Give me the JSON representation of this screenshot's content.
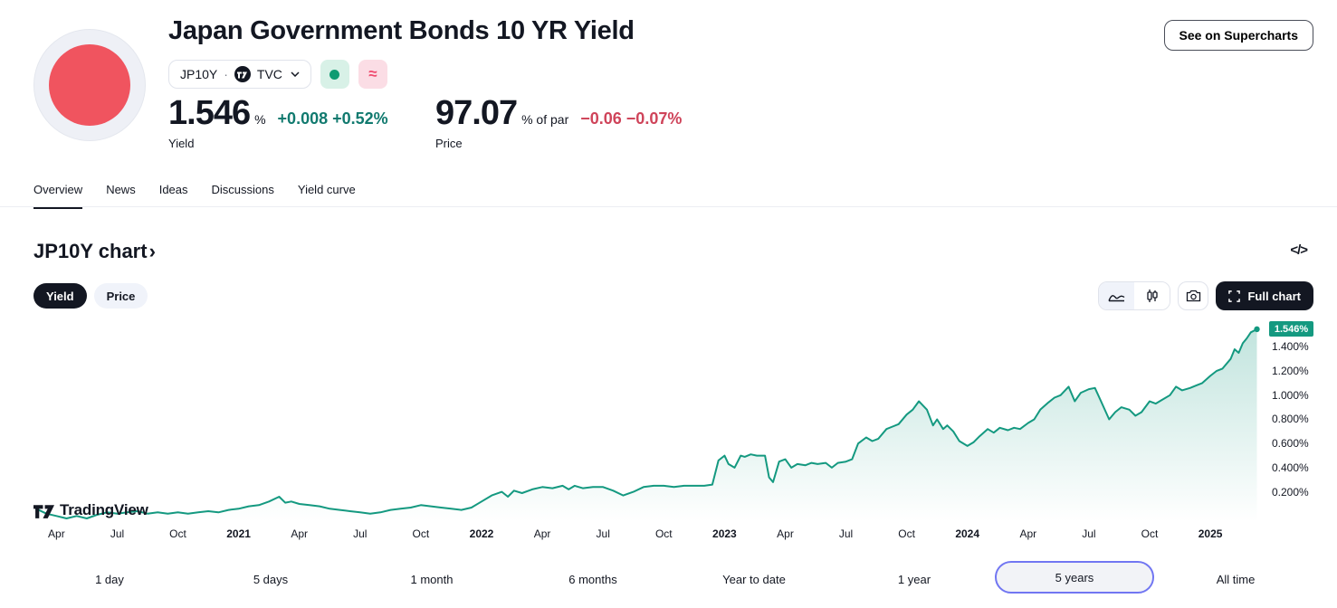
{
  "colors": {
    "line": "#149980",
    "up": "#117a6f",
    "down": "#cf445a",
    "range_selected_border": "#7176f2"
  },
  "header": {
    "title": "Japan Government Bonds 10 YR Yield",
    "symbol": "JP10Y",
    "separator": "·",
    "exchange": "TVC",
    "chevron": "⌄",
    "approx_glyph": "≈",
    "see_on_supercharts": "See on Supercharts",
    "yield": {
      "value": "1.546",
      "unit": "%",
      "change": "+0.008",
      "change_pct": "+0.52%",
      "label": "Yield"
    },
    "price": {
      "value": "97.07",
      "unit": "% of par",
      "change": "−0.06",
      "change_pct": "−0.07%",
      "label": "Price"
    }
  },
  "tabs": [
    {
      "label": "Overview"
    },
    {
      "label": "News"
    },
    {
      "label": "Ideas"
    },
    {
      "label": "Discussions"
    },
    {
      "label": "Yield curve"
    }
  ],
  "chart_section": {
    "title": "JP10Y chart",
    "chevron": "›",
    "code_icon": "</>",
    "toggle_yield": "Yield",
    "toggle_price": "Price",
    "full_chart": "Full chart"
  },
  "watermark": "TradingView",
  "ranges": [
    "1 day",
    "5 days",
    "1 month",
    "6 months",
    "Year to date",
    "1 year",
    "5 years",
    "All time"
  ],
  "chart_data": {
    "type": "area",
    "series_name": "JP10Y yield %",
    "last_value": 1.546,
    "last_value_label": "1.546%",
    "xlim": [
      -1,
      59.5
    ],
    "ylim": [
      -0.05,
      1.59
    ],
    "grid": false,
    "legend": "none",
    "y_ticks": [
      {
        "v": 1.4,
        "label": "1.400%"
      },
      {
        "v": 1.2,
        "label": "1.200%"
      },
      {
        "v": 1.0,
        "label": "1.000%"
      },
      {
        "v": 0.8,
        "label": "0.800%"
      },
      {
        "v": 0.6,
        "label": "0.600%"
      },
      {
        "v": 0.4,
        "label": "0.400%"
      },
      {
        "v": 0.2,
        "label": "0.200%"
      }
    ],
    "x_ticks": [
      {
        "t": 0,
        "label": "Apr"
      },
      {
        "t": 3,
        "label": "Jul"
      },
      {
        "t": 6,
        "label": "Oct"
      },
      {
        "t": 9,
        "label": "2021",
        "bold": true
      },
      {
        "t": 12,
        "label": "Apr"
      },
      {
        "t": 15,
        "label": "Jul"
      },
      {
        "t": 18,
        "label": "Oct"
      },
      {
        "t": 21,
        "label": "2022",
        "bold": true
      },
      {
        "t": 24,
        "label": "Apr"
      },
      {
        "t": 27,
        "label": "Jul"
      },
      {
        "t": 30,
        "label": "Oct"
      },
      {
        "t": 33,
        "label": "2023",
        "bold": true
      },
      {
        "t": 36,
        "label": "Apr"
      },
      {
        "t": 39,
        "label": "Jul"
      },
      {
        "t": 42,
        "label": "Oct"
      },
      {
        "t": 45,
        "label": "2024",
        "bold": true
      },
      {
        "t": 48,
        "label": "Apr"
      },
      {
        "t": 51,
        "label": "Jul"
      },
      {
        "t": 54,
        "label": "Oct"
      },
      {
        "t": 57,
        "label": "2025",
        "bold": true
      }
    ],
    "points": [
      [
        -1,
        0.06
      ],
      [
        -0.5,
        0.02
      ],
      [
        0,
        0.0
      ],
      [
        0.5,
        -0.02
      ],
      [
        1,
        0.0
      ],
      [
        1.5,
        -0.02
      ],
      [
        2,
        0.01
      ],
      [
        2.5,
        0.03
      ],
      [
        3,
        0.02
      ],
      [
        3.5,
        0.03
      ],
      [
        4,
        0.04
      ],
      [
        4.5,
        0.02
      ],
      [
        5,
        0.03
      ],
      [
        5.5,
        0.02
      ],
      [
        6,
        0.03
      ],
      [
        6.5,
        0.02
      ],
      [
        7,
        0.03
      ],
      [
        7.5,
        0.04
      ],
      [
        8,
        0.03
      ],
      [
        8.5,
        0.05
      ],
      [
        9,
        0.06
      ],
      [
        9.5,
        0.08
      ],
      [
        10,
        0.09
      ],
      [
        10.5,
        0.12
      ],
      [
        11,
        0.16
      ],
      [
        11.3,
        0.11
      ],
      [
        11.6,
        0.12
      ],
      [
        12,
        0.1
      ],
      [
        12.5,
        0.09
      ],
      [
        13,
        0.08
      ],
      [
        13.5,
        0.06
      ],
      [
        14,
        0.05
      ],
      [
        14.5,
        0.04
      ],
      [
        15,
        0.03
      ],
      [
        15.5,
        0.02
      ],
      [
        16,
        0.03
      ],
      [
        16.5,
        0.05
      ],
      [
        17,
        0.06
      ],
      [
        17.5,
        0.07
      ],
      [
        18,
        0.09
      ],
      [
        18.5,
        0.08
      ],
      [
        19,
        0.07
      ],
      [
        19.5,
        0.06
      ],
      [
        20,
        0.05
      ],
      [
        20.5,
        0.07
      ],
      [
        21,
        0.12
      ],
      [
        21.5,
        0.17
      ],
      [
        22,
        0.2
      ],
      [
        22.3,
        0.16
      ],
      [
        22.6,
        0.21
      ],
      [
        23,
        0.19
      ],
      [
        23.5,
        0.22
      ],
      [
        24,
        0.24
      ],
      [
        24.5,
        0.23
      ],
      [
        25,
        0.25
      ],
      [
        25.3,
        0.22
      ],
      [
        25.6,
        0.25
      ],
      [
        26,
        0.23
      ],
      [
        26.5,
        0.24
      ],
      [
        27,
        0.24
      ],
      [
        27.5,
        0.21
      ],
      [
        28,
        0.17
      ],
      [
        28.5,
        0.2
      ],
      [
        29,
        0.24
      ],
      [
        29.5,
        0.25
      ],
      [
        30,
        0.25
      ],
      [
        30.5,
        0.24
      ],
      [
        31,
        0.25
      ],
      [
        31.5,
        0.25
      ],
      [
        32,
        0.25
      ],
      [
        32.4,
        0.26
      ],
      [
        32.7,
        0.46
      ],
      [
        33,
        0.5
      ],
      [
        33.2,
        0.43
      ],
      [
        33.5,
        0.4
      ],
      [
        33.8,
        0.5
      ],
      [
        34,
        0.49
      ],
      [
        34.3,
        0.51
      ],
      [
        34.6,
        0.5
      ],
      [
        35,
        0.5
      ],
      [
        35.2,
        0.32
      ],
      [
        35.4,
        0.28
      ],
      [
        35.7,
        0.45
      ],
      [
        36,
        0.47
      ],
      [
        36.3,
        0.4
      ],
      [
        36.6,
        0.43
      ],
      [
        37,
        0.42
      ],
      [
        37.3,
        0.44
      ],
      [
        37.6,
        0.43
      ],
      [
        38,
        0.44
      ],
      [
        38.3,
        0.4
      ],
      [
        38.6,
        0.44
      ],
      [
        39,
        0.45
      ],
      [
        39.3,
        0.47
      ],
      [
        39.6,
        0.6
      ],
      [
        40,
        0.65
      ],
      [
        40.3,
        0.62
      ],
      [
        40.6,
        0.64
      ],
      [
        41,
        0.72
      ],
      [
        41.3,
        0.74
      ],
      [
        41.6,
        0.76
      ],
      [
        42,
        0.84
      ],
      [
        42.3,
        0.88
      ],
      [
        42.6,
        0.95
      ],
      [
        43,
        0.88
      ],
      [
        43.3,
        0.75
      ],
      [
        43.5,
        0.8
      ],
      [
        43.8,
        0.72
      ],
      [
        44,
        0.75
      ],
      [
        44.3,
        0.7
      ],
      [
        44.6,
        0.62
      ],
      [
        45,
        0.58
      ],
      [
        45.3,
        0.61
      ],
      [
        45.6,
        0.66
      ],
      [
        46,
        0.72
      ],
      [
        46.3,
        0.69
      ],
      [
        46.6,
        0.73
      ],
      [
        47,
        0.71
      ],
      [
        47.3,
        0.73
      ],
      [
        47.6,
        0.72
      ],
      [
        48,
        0.77
      ],
      [
        48.3,
        0.8
      ],
      [
        48.6,
        0.88
      ],
      [
        49,
        0.94
      ],
      [
        49.3,
        0.98
      ],
      [
        49.6,
        1.0
      ],
      [
        50,
        1.07
      ],
      [
        50.3,
        0.95
      ],
      [
        50.6,
        1.02
      ],
      [
        51,
        1.05
      ],
      [
        51.3,
        1.06
      ],
      [
        51.6,
        0.95
      ],
      [
        52,
        0.8
      ],
      [
        52.3,
        0.86
      ],
      [
        52.6,
        0.9
      ],
      [
        53,
        0.88
      ],
      [
        53.3,
        0.83
      ],
      [
        53.6,
        0.86
      ],
      [
        54,
        0.95
      ],
      [
        54.3,
        0.93
      ],
      [
        54.6,
        0.96
      ],
      [
        55,
        1.0
      ],
      [
        55.3,
        1.07
      ],
      [
        55.6,
        1.04
      ],
      [
        56,
        1.06
      ],
      [
        56.3,
        1.08
      ],
      [
        56.6,
        1.1
      ],
      [
        57,
        1.16
      ],
      [
        57.3,
        1.2
      ],
      [
        57.6,
        1.22
      ],
      [
        58,
        1.3
      ],
      [
        58.2,
        1.38
      ],
      [
        58.4,
        1.35
      ],
      [
        58.6,
        1.43
      ],
      [
        58.8,
        1.47
      ],
      [
        59,
        1.52
      ],
      [
        59.3,
        1.546
      ]
    ]
  }
}
